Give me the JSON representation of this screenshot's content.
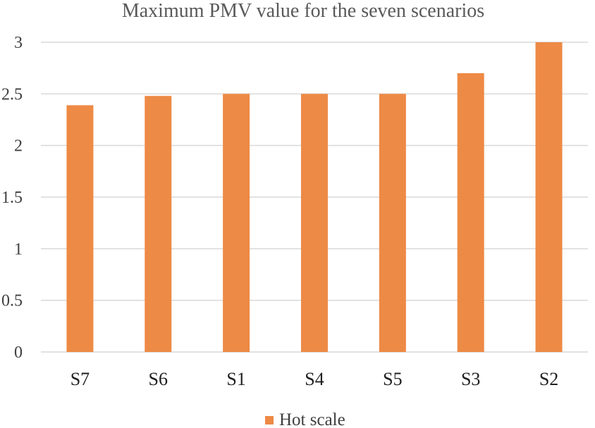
{
  "chart_data": {
    "type": "bar",
    "title": "Maximum PMV value for the seven scenarios",
    "xlabel": "",
    "ylabel": "",
    "categories": [
      "S7",
      "S6",
      "S1",
      "S4",
      "S5",
      "S3",
      "S2"
    ],
    "series": [
      {
        "name": "Hot scale",
        "values": [
          2.39,
          2.48,
          2.5,
          2.5,
          2.5,
          2.7,
          3.0
        ]
      }
    ],
    "ylim": [
      0,
      3
    ],
    "yticks": [
      "0",
      "0.5",
      "1",
      "1.5",
      "2",
      "2.5",
      "3"
    ],
    "grid": true,
    "legend": "bottom",
    "colors": {
      "bar": "#ed8a45",
      "grid": "#d9d9d9"
    }
  }
}
